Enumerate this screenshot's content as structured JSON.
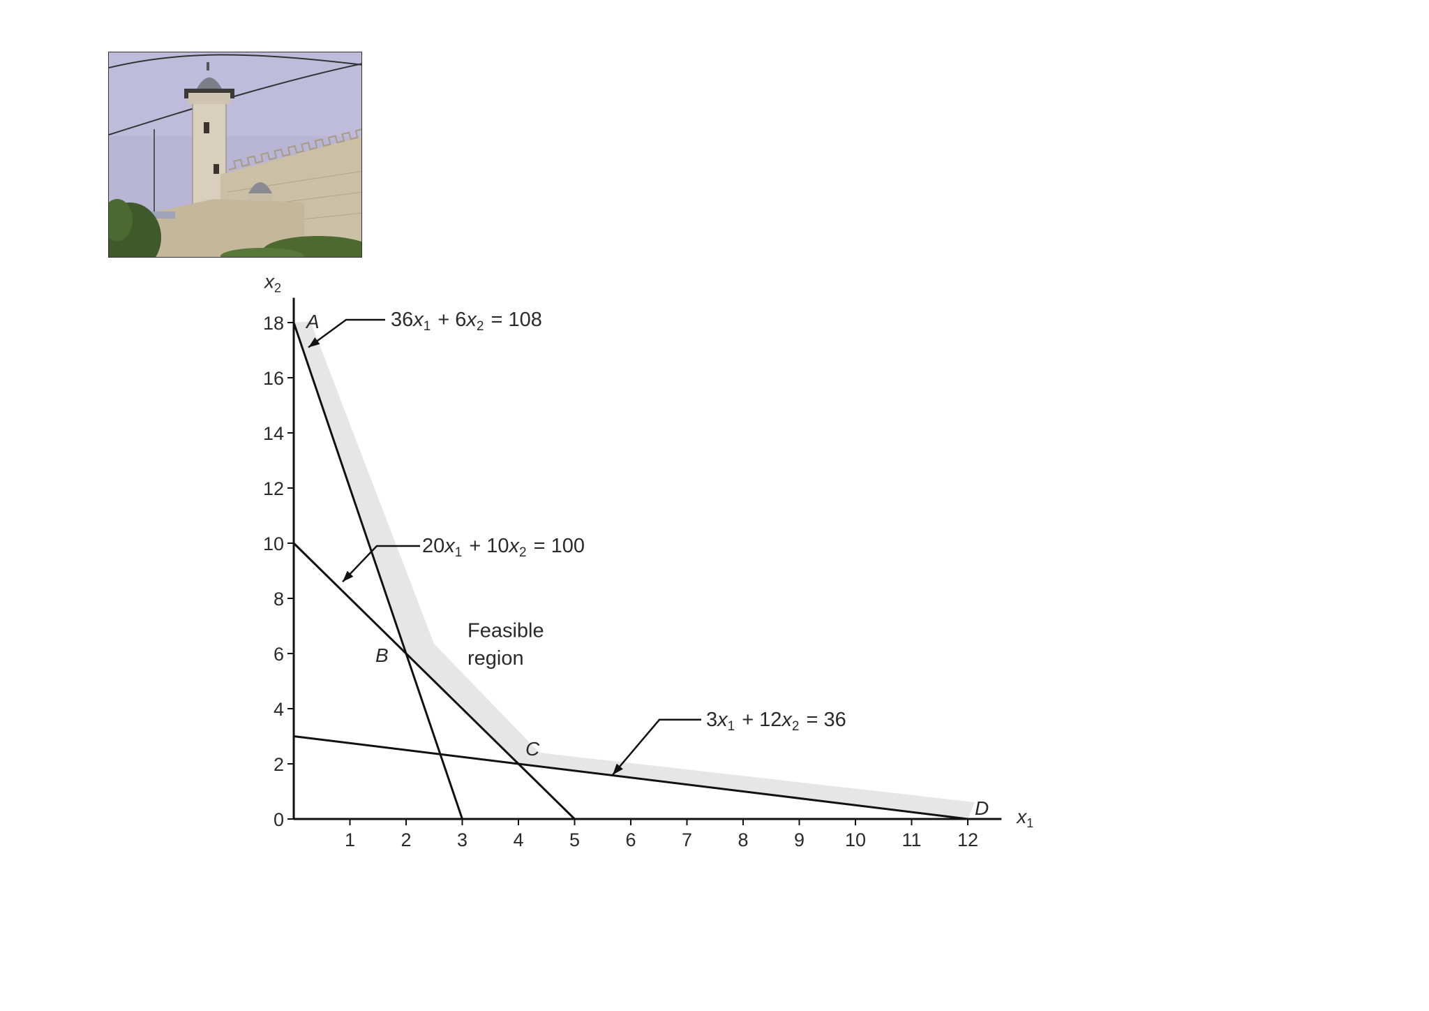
{
  "chart_data": {
    "type": "line",
    "title": "",
    "xlabel": "x1",
    "ylabel": "x2",
    "xlim": [
      0,
      12.6
    ],
    "ylim": [
      0,
      18.5
    ],
    "x_ticks": [
      "1",
      "2",
      "3",
      "4",
      "5",
      "6",
      "7",
      "8",
      "9",
      "10",
      "11",
      "12"
    ],
    "y_ticks": [
      "0",
      "2",
      "4",
      "6",
      "8",
      "10",
      "12",
      "14",
      "16",
      "18"
    ],
    "grid": false,
    "lines": [
      {
        "name": "36x1 + 6x2 = 108",
        "x": [
          0,
          3
        ],
        "y": [
          18,
          0
        ]
      },
      {
        "name": "20x1 + 10x2 = 100",
        "x": [
          0,
          5
        ],
        "y": [
          10,
          0
        ]
      },
      {
        "name": "3x1 + 12x2 = 36",
        "x": [
          0,
          12
        ],
        "y": [
          3,
          0
        ]
      }
    ],
    "feasible_region_boundary": {
      "x": [
        0,
        2,
        4,
        12
      ],
      "y": [
        18,
        6,
        2,
        0
      ]
    },
    "corner_points": [
      {
        "label": "A",
        "x": 0,
        "y": 18
      },
      {
        "label": "B",
        "x": 2,
        "y": 6
      },
      {
        "label": "C",
        "x": 4,
        "y": 2
      },
      {
        "label": "D",
        "x": 12,
        "y": 0
      }
    ],
    "annotations": {
      "eq1": {
        "coef1": "36",
        "v1": "x",
        "s1": "1",
        "op": "+",
        "coef2": "6",
        "v2": "x",
        "s2": "2",
        "rhs": "= 108"
      },
      "eq2": {
        "coef1": "20",
        "v1": "x",
        "s1": "1",
        "op": "+",
        "coef2": "10",
        "v2": "x",
        "s2": "2",
        "rhs": "= 100"
      },
      "eq3": {
        "coef1": "3",
        "v1": "x",
        "s1": "1",
        "op": "+",
        "coef2": "12",
        "v2": "x",
        "s2": "2",
        "rhs": "= 36"
      },
      "region_line1": "Feasible",
      "region_line2": "region"
    },
    "axis_titles": {
      "x_var": "x",
      "x_sub": "1",
      "y_var": "x",
      "y_sub": "2"
    }
  },
  "photo": {
    "subject": "stone-building-with-minaret",
    "sky_color": "#b9b6d6"
  }
}
